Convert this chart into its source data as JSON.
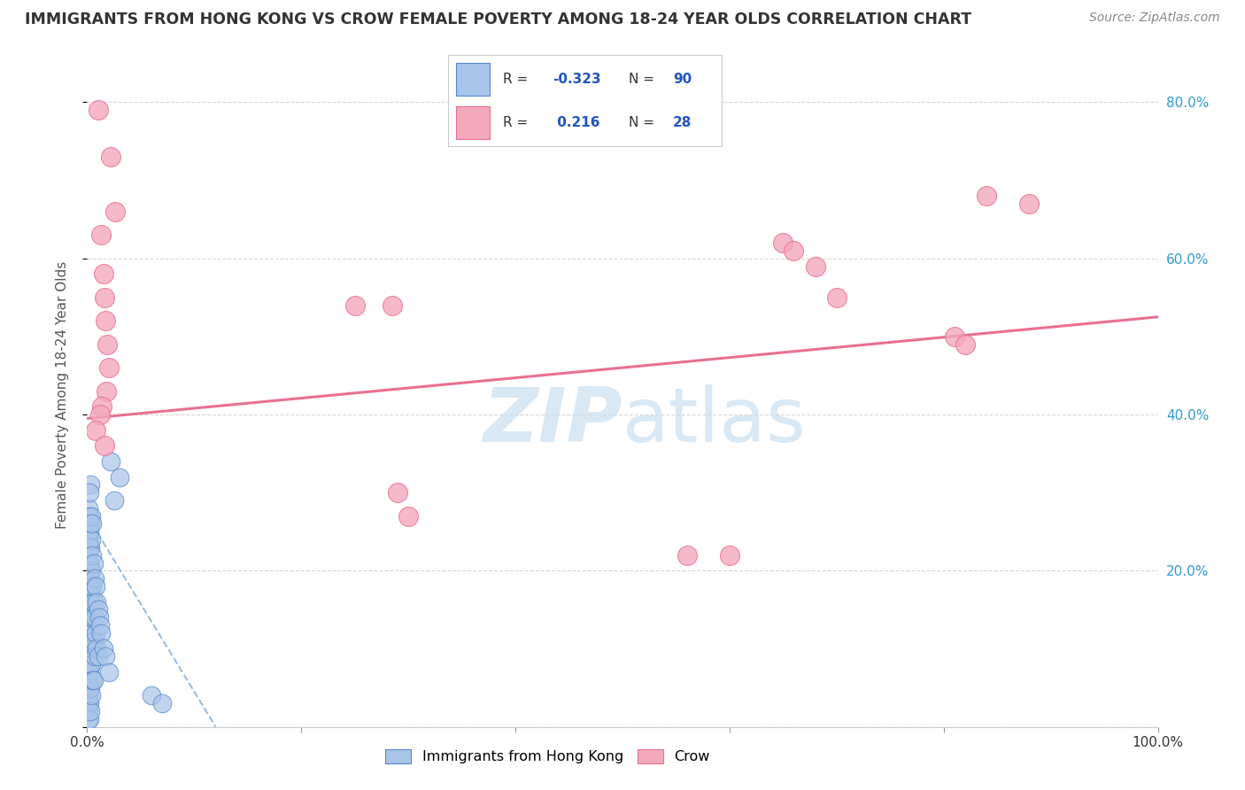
{
  "title": "IMMIGRANTS FROM HONG KONG VS CROW FEMALE POVERTY AMONG 18-24 YEAR OLDS CORRELATION CHART",
  "source": "Source: ZipAtlas.com",
  "ylabel": "Female Poverty Among 18-24 Year Olds",
  "xlim": [
    0,
    1.0
  ],
  "ylim": [
    0,
    0.85
  ],
  "x_ticks": [
    0.0,
    0.2,
    0.4,
    0.6,
    0.8,
    1.0
  ],
  "x_tick_labels": [
    "0.0%",
    "",
    "",
    "",
    "",
    "100.0%"
  ],
  "y_tick_labels_right": [
    "",
    "20.0%",
    "40.0%",
    "60.0%",
    "80.0%"
  ],
  "y_ticks_right": [
    0.0,
    0.2,
    0.4,
    0.6,
    0.8
  ],
  "blue_color": "#a8c4e8",
  "blue_edge_color": "#5588cc",
  "pink_color": "#f4a8bc",
  "pink_edge_color": "#e87090",
  "blue_trend_color": "#99bbdd",
  "pink_trend_color": "#e87090",
  "watermark_color": "#c8dff0",
  "legend_blue_r": "-0.323",
  "legend_blue_n": "90",
  "legend_pink_r": "0.216",
  "legend_pink_n": "28",
  "pink_trend_x0": 0.0,
  "pink_trend_y0": 0.395,
  "pink_trend_x1": 1.0,
  "pink_trend_y1": 0.525,
  "blue_trend_x0": 0.0,
  "blue_trend_y0": 0.27,
  "blue_trend_x1": 0.12,
  "blue_trend_y1": 0.0,
  "blue_scatter": [
    [
      0.001,
      0.28
    ],
    [
      0.001,
      0.26
    ],
    [
      0.001,
      0.25
    ],
    [
      0.001,
      0.24
    ],
    [
      0.001,
      0.23
    ],
    [
      0.001,
      0.22
    ],
    [
      0.001,
      0.21
    ],
    [
      0.001,
      0.21
    ],
    [
      0.001,
      0.2
    ],
    [
      0.001,
      0.19
    ],
    [
      0.001,
      0.18
    ],
    [
      0.001,
      0.17
    ],
    [
      0.001,
      0.16
    ],
    [
      0.001,
      0.15
    ],
    [
      0.001,
      0.14
    ],
    [
      0.001,
      0.13
    ],
    [
      0.001,
      0.12
    ],
    [
      0.001,
      0.11
    ],
    [
      0.001,
      0.1
    ],
    [
      0.001,
      0.09
    ],
    [
      0.001,
      0.08
    ],
    [
      0.001,
      0.07
    ],
    [
      0.001,
      0.06
    ],
    [
      0.001,
      0.05
    ],
    [
      0.001,
      0.04
    ],
    [
      0.001,
      0.03
    ],
    [
      0.001,
      0.02
    ],
    [
      0.001,
      0.01
    ],
    [
      0.002,
      0.27
    ],
    [
      0.002,
      0.25
    ],
    [
      0.002,
      0.23
    ],
    [
      0.002,
      0.21
    ],
    [
      0.002,
      0.19
    ],
    [
      0.002,
      0.17
    ],
    [
      0.002,
      0.15
    ],
    [
      0.002,
      0.13
    ],
    [
      0.002,
      0.11
    ],
    [
      0.002,
      0.09
    ],
    [
      0.002,
      0.07
    ],
    [
      0.002,
      0.05
    ],
    [
      0.002,
      0.03
    ],
    [
      0.002,
      0.01
    ],
    [
      0.003,
      0.26
    ],
    [
      0.003,
      0.23
    ],
    [
      0.003,
      0.2
    ],
    [
      0.003,
      0.17
    ],
    [
      0.003,
      0.14
    ],
    [
      0.003,
      0.11
    ],
    [
      0.003,
      0.08
    ],
    [
      0.003,
      0.05
    ],
    [
      0.003,
      0.02
    ],
    [
      0.004,
      0.24
    ],
    [
      0.004,
      0.2
    ],
    [
      0.004,
      0.16
    ],
    [
      0.004,
      0.12
    ],
    [
      0.004,
      0.08
    ],
    [
      0.004,
      0.04
    ],
    [
      0.005,
      0.22
    ],
    [
      0.005,
      0.18
    ],
    [
      0.005,
      0.14
    ],
    [
      0.005,
      0.1
    ],
    [
      0.005,
      0.06
    ],
    [
      0.006,
      0.21
    ],
    [
      0.006,
      0.16
    ],
    [
      0.006,
      0.11
    ],
    [
      0.006,
      0.06
    ],
    [
      0.007,
      0.19
    ],
    [
      0.007,
      0.14
    ],
    [
      0.007,
      0.09
    ],
    [
      0.008,
      0.18
    ],
    [
      0.008,
      0.12
    ],
    [
      0.009,
      0.16
    ],
    [
      0.009,
      0.1
    ],
    [
      0.01,
      0.15
    ],
    [
      0.01,
      0.09
    ],
    [
      0.011,
      0.14
    ],
    [
      0.012,
      0.13
    ],
    [
      0.013,
      0.12
    ],
    [
      0.015,
      0.1
    ],
    [
      0.017,
      0.09
    ],
    [
      0.02,
      0.07
    ],
    [
      0.022,
      0.34
    ],
    [
      0.025,
      0.29
    ],
    [
      0.03,
      0.32
    ],
    [
      0.003,
      0.31
    ],
    [
      0.002,
      0.3
    ],
    [
      0.004,
      0.27
    ],
    [
      0.005,
      0.26
    ],
    [
      0.06,
      0.04
    ],
    [
      0.07,
      0.03
    ]
  ],
  "pink_scatter": [
    [
      0.01,
      0.79
    ],
    [
      0.022,
      0.73
    ],
    [
      0.026,
      0.66
    ],
    [
      0.013,
      0.63
    ],
    [
      0.015,
      0.58
    ],
    [
      0.016,
      0.55
    ],
    [
      0.017,
      0.52
    ],
    [
      0.019,
      0.49
    ],
    [
      0.02,
      0.46
    ],
    [
      0.018,
      0.43
    ],
    [
      0.014,
      0.41
    ],
    [
      0.012,
      0.4
    ],
    [
      0.008,
      0.38
    ],
    [
      0.016,
      0.36
    ],
    [
      0.25,
      0.54
    ],
    [
      0.285,
      0.54
    ],
    [
      0.29,
      0.3
    ],
    [
      0.3,
      0.27
    ],
    [
      0.6,
      0.22
    ],
    [
      0.65,
      0.62
    ],
    [
      0.66,
      0.61
    ],
    [
      0.68,
      0.59
    ],
    [
      0.7,
      0.55
    ],
    [
      0.81,
      0.5
    ],
    [
      0.82,
      0.49
    ],
    [
      0.84,
      0.68
    ],
    [
      0.88,
      0.67
    ],
    [
      0.56,
      0.22
    ]
  ]
}
